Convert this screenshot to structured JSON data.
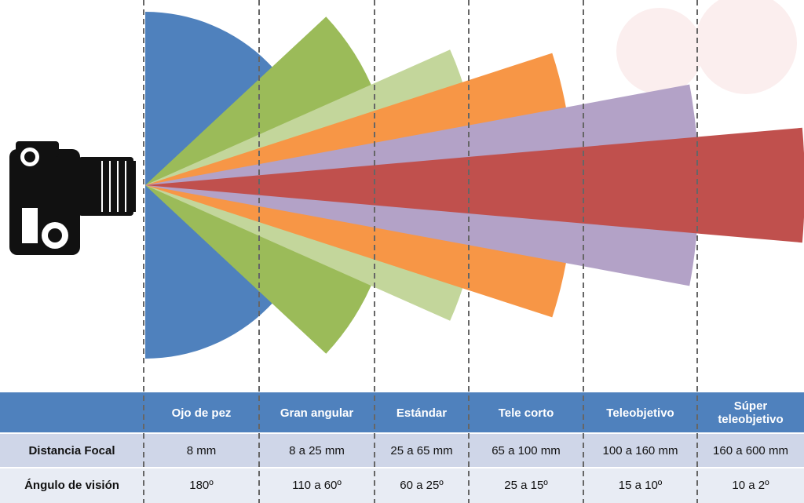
{
  "table": {
    "columns": [
      "Ojo de pez",
      "Gran angular",
      "Estándar",
      "Tele corto",
      "Teleobjetivo",
      "Súper teleobjetivo"
    ],
    "rows": [
      {
        "label": "Distancia Focal",
        "cells": [
          "8 mm",
          "8 a 25 mm",
          "25 a 65  mm",
          "65 a 100 mm",
          "100 a 160 mm",
          "160 a 600 mm"
        ]
      },
      {
        "label": "Ángulo de visión",
        "cells": [
          "180º",
          "110 a 60º",
          "60 a 25º",
          "25 a 15º",
          "15 a 10º",
          "10 a 2º"
        ]
      }
    ]
  }
}
